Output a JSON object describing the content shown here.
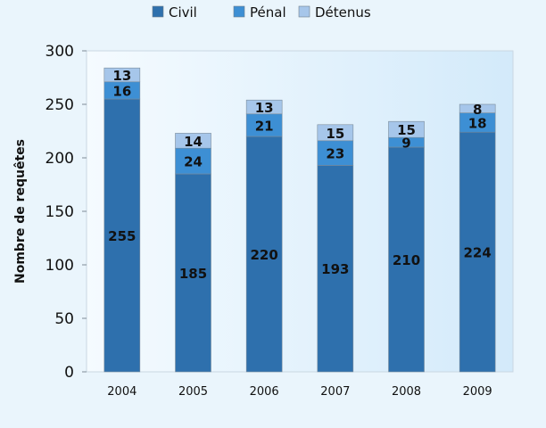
{
  "chart_data": {
    "type": "bar",
    "stacked": true,
    "categories": [
      "2004",
      "2005",
      "2006",
      "2007",
      "2008",
      "2009"
    ],
    "series": [
      {
        "name": "Civil",
        "color": "#2e70ad",
        "values": [
          255,
          185,
          220,
          193,
          210,
          224
        ]
      },
      {
        "name": "Pénal",
        "color": "#3d8fd4",
        "values": [
          16,
          24,
          21,
          23,
          9,
          18
        ]
      },
      {
        "name": "Détenus",
        "color": "#a6c6ea",
        "values": [
          13,
          14,
          13,
          15,
          15,
          8
        ]
      }
    ],
    "title": "",
    "xlabel": "",
    "ylabel": "Nombre de requêtes",
    "ylim": [
      0,
      300
    ],
    "yticks": [
      0,
      50,
      100,
      150,
      200,
      250,
      300
    ],
    "legend_position": "top",
    "grid": false,
    "plot_background": "#dceefb"
  }
}
